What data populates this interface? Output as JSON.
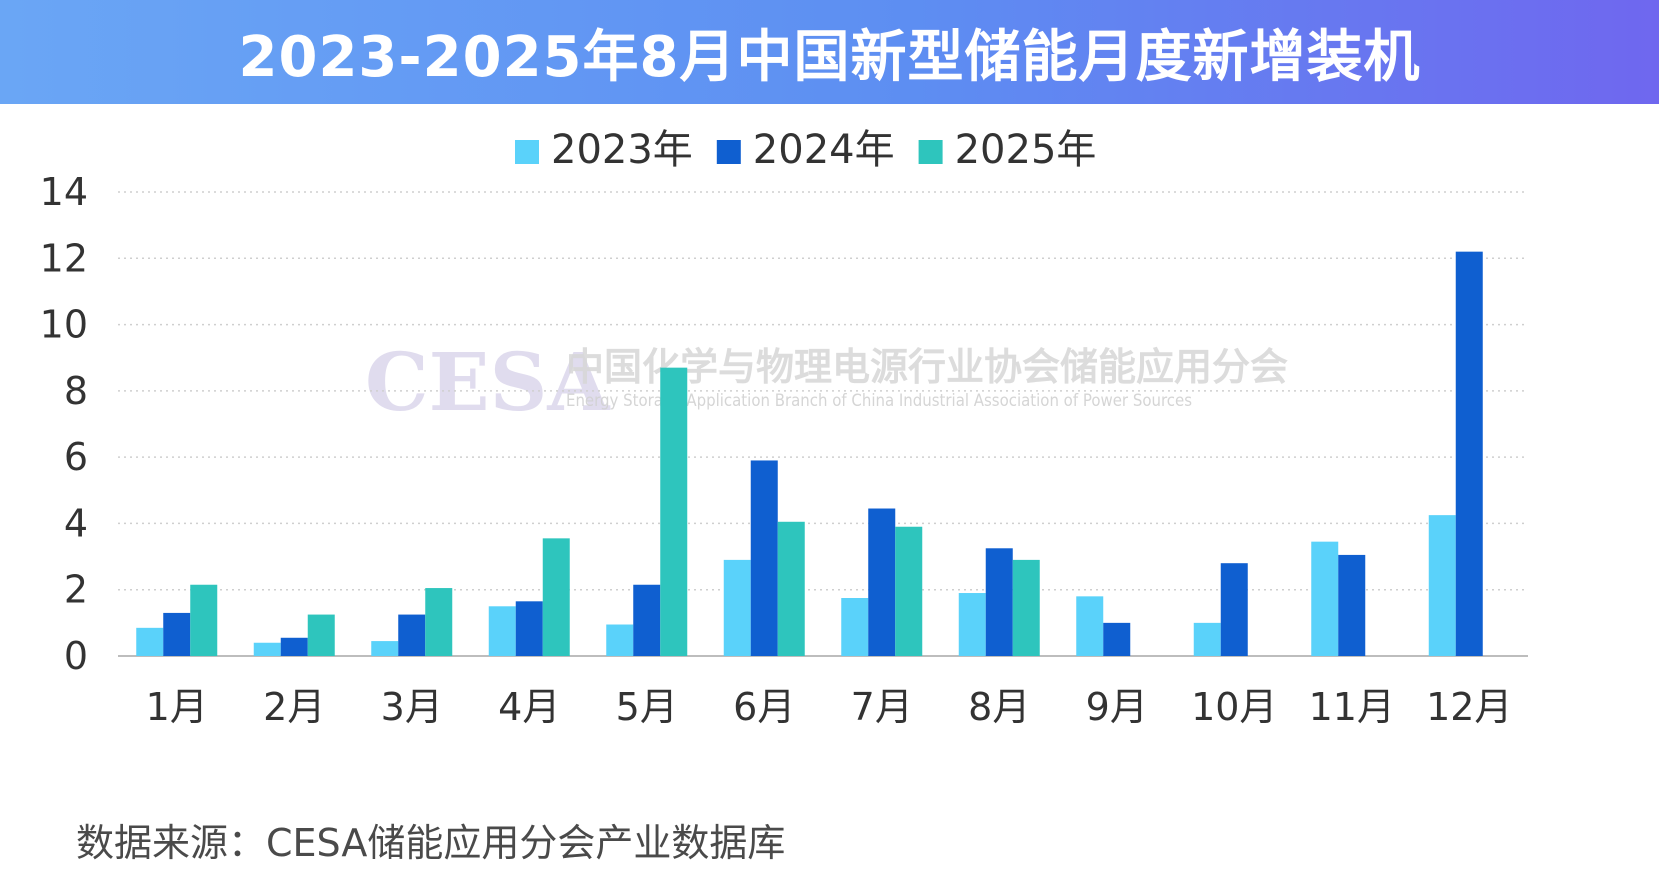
{
  "title": "2023-2025年8月中国新型储能月度新增装机",
  "source": "数据来源：CESA储能应用分会产业数据库",
  "watermark": {
    "logo": "CESA",
    "name_cn": "中国化学与物理电源行业协会储能应用分会",
    "name_en": "Energy Storage Application Branch of China Industrial Association of Power Sources"
  },
  "colors": {
    "title_gradient_start": "#6aa6f5",
    "title_gradient_end": "#6f67ef",
    "s2023": "#5ad2fa",
    "s2024": "#0f5fd0",
    "s2025": "#2ec5bd",
    "grid": "#cfcfcf",
    "axis_text": "#333333"
  },
  "chart_data": {
    "type": "bar",
    "categories": [
      "1月",
      "2月",
      "3月",
      "4月",
      "5月",
      "6月",
      "7月",
      "8月",
      "9月",
      "10月",
      "11月",
      "12月"
    ],
    "series": [
      {
        "name": "2023年",
        "values": [
          0.85,
          0.4,
          0.45,
          1.5,
          0.95,
          2.9,
          1.75,
          1.9,
          1.8,
          1.0,
          3.45,
          4.25
        ]
      },
      {
        "name": "2024年",
        "values": [
          1.3,
          0.55,
          1.25,
          1.65,
          2.15,
          5.9,
          4.45,
          3.25,
          1.0,
          2.8,
          3.05,
          12.2
        ]
      },
      {
        "name": "2025年",
        "values": [
          2.15,
          1.25,
          2.05,
          3.55,
          8.7,
          4.05,
          3.9,
          2.9,
          null,
          null,
          null,
          null
        ]
      }
    ],
    "ylim": [
      0,
      14
    ],
    "yticks": [
      0,
      2,
      4,
      6,
      8,
      10,
      12,
      14
    ],
    "grid": true,
    "legend_position": "top-center",
    "title": "",
    "xlabel": "",
    "ylabel": ""
  }
}
